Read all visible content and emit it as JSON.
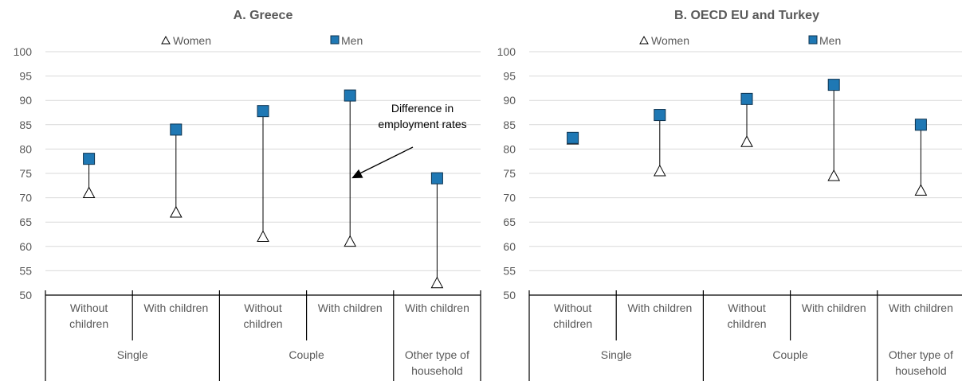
{
  "colors": {
    "men": "#1f78b4",
    "men_border": "#0d3350",
    "women_fill": "#ffffff",
    "women_border": "#000000",
    "grid": "#d9d9d9",
    "axis": "#000000",
    "text": "#595959"
  },
  "legend": {
    "women": "Women",
    "men": "Men"
  },
  "chart_data": [
    {
      "type": "scatter",
      "title": "A. Greece",
      "ylim": [
        50,
        100
      ],
      "yticks": [
        50,
        55,
        60,
        65,
        70,
        75,
        80,
        85,
        90,
        95,
        100
      ],
      "grid": true,
      "legend_position": "top",
      "categories": [
        {
          "lines": [
            "Without",
            "children"
          ]
        },
        {
          "lines": [
            "With children"
          ]
        },
        {
          "lines": [
            "Without",
            "children"
          ]
        },
        {
          "lines": [
            "With children"
          ]
        },
        {
          "lines": [
            "With children"
          ]
        }
      ],
      "groups": [
        {
          "lines": [
            "Single"
          ],
          "span": [
            0,
            2
          ]
        },
        {
          "lines": [
            "Couple"
          ],
          "span": [
            2,
            4
          ]
        },
        {
          "lines": [
            "Other type of",
            "household"
          ],
          "span": [
            4,
            5
          ]
        }
      ],
      "series": [
        {
          "name": "Women",
          "marker": "triangle",
          "values": [
            71,
            67,
            62,
            61,
            52.5
          ]
        },
        {
          "name": "Men",
          "marker": "square",
          "values": [
            78,
            84,
            87.8,
            91,
            74
          ]
        }
      ],
      "annotation": {
        "lines": [
          "Difference in",
          "employment rates"
        ],
        "category": 3,
        "value": 74
      }
    },
    {
      "type": "scatter",
      "title": "B. OECD EU and Turkey",
      "ylim": [
        50,
        100
      ],
      "yticks": [
        50,
        55,
        60,
        65,
        70,
        75,
        80,
        85,
        90,
        95,
        100
      ],
      "grid": true,
      "legend_position": "top",
      "categories": [
        {
          "lines": [
            "Without",
            "children"
          ]
        },
        {
          "lines": [
            "With children"
          ]
        },
        {
          "lines": [
            "Without",
            "children"
          ]
        },
        {
          "lines": [
            "With children"
          ]
        },
        {
          "lines": [
            "With children"
          ]
        }
      ],
      "groups": [
        {
          "lines": [
            "Single"
          ],
          "span": [
            0,
            2
          ]
        },
        {
          "lines": [
            "Couple"
          ],
          "span": [
            2,
            4
          ]
        },
        {
          "lines": [
            "Other type of",
            "household"
          ],
          "span": [
            4,
            5
          ]
        }
      ],
      "series": [
        {
          "name": "Women",
          "marker": "triangle",
          "values": [
            82,
            75.5,
            81.5,
            74.5,
            71.5
          ]
        },
        {
          "name": "Men",
          "marker": "square",
          "values": [
            82.3,
            87,
            90.3,
            93.2,
            85
          ]
        }
      ]
    }
  ]
}
